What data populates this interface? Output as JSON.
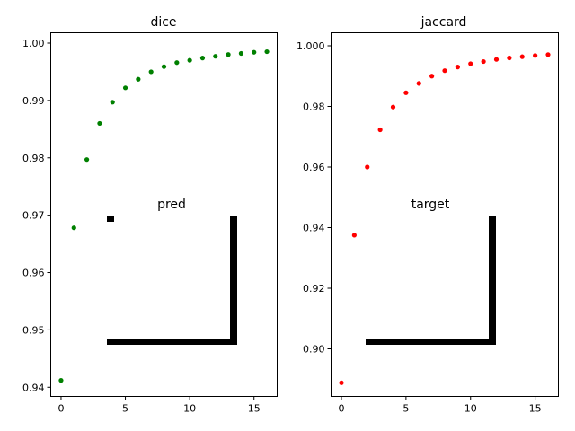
{
  "chart_data": [
    {
      "type": "scatter",
      "title": "dice",
      "xlabel": "",
      "ylabel": "",
      "xlim": [
        -0.8,
        16.8
      ],
      "ylim": [
        0.9384,
        1.0018
      ],
      "xticks": [
        0,
        5,
        10,
        15
      ],
      "yticks": [
        0.94,
        0.95,
        0.96,
        0.97,
        0.98,
        0.99,
        1.0
      ],
      "ytick_labels": [
        "0.94",
        "0.95",
        "0.96",
        "0.97",
        "0.98",
        "0.99",
        "1.00"
      ],
      "grid": false,
      "point_color": "#008000",
      "x": [
        0,
        1,
        2,
        3,
        4,
        5,
        6,
        7,
        8,
        9,
        10,
        11,
        12,
        13,
        14,
        15,
        16
      ],
      "y": [
        0.9412,
        0.9678,
        0.9797,
        0.986,
        0.9897,
        0.9922,
        0.9937,
        0.995,
        0.9959,
        0.9966,
        0.997,
        0.9974,
        0.9977,
        0.998,
        0.9982,
        0.9984,
        0.9985
      ],
      "inset": {
        "title": "pred",
        "color": "#000000"
      }
    },
    {
      "type": "scatter",
      "title": "jaccard",
      "xlabel": "",
      "ylabel": "",
      "xlim": [
        -0.8,
        16.8
      ],
      "ylim": [
        0.8843,
        1.0043
      ],
      "xticks": [
        0,
        5,
        10,
        15
      ],
      "yticks": [
        0.9,
        0.92,
        0.94,
        0.96,
        0.98,
        1.0
      ],
      "ytick_labels": [
        "0.90",
        "0.92",
        "0.94",
        "0.96",
        "0.98",
        "1.000"
      ],
      "grid": false,
      "point_color": "#ff0000",
      "x": [
        0,
        1,
        2,
        3,
        4,
        5,
        6,
        7,
        8,
        9,
        10,
        11,
        12,
        13,
        14,
        15,
        16
      ],
      "y": [
        0.8888,
        0.9375,
        0.96,
        0.9723,
        0.9798,
        0.9845,
        0.9876,
        0.99,
        0.9918,
        0.993,
        0.9941,
        0.9948,
        0.9955,
        0.996,
        0.9964,
        0.9968,
        0.9971
      ],
      "inset": {
        "title": "target",
        "color": "#000000"
      }
    }
  ]
}
